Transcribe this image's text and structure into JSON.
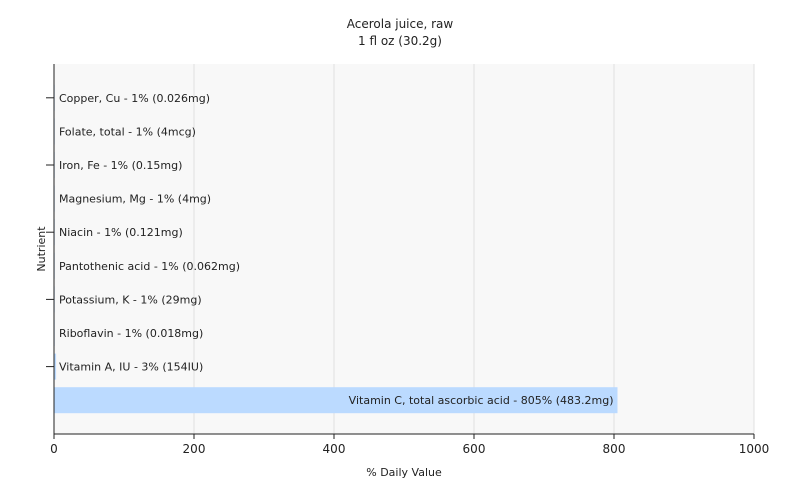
{
  "chart_data": {
    "type": "bar",
    "orientation": "horizontal",
    "title": "Acerola juice, raw",
    "subtitle": "1 fl oz (30.2g)",
    "xlabel": "% Daily Value",
    "ylabel": "Nutrient",
    "xlim": [
      0,
      1000
    ],
    "xticks": [
      0,
      200,
      400,
      600,
      800,
      1000
    ],
    "grid": true,
    "bar_color": "#bbdaff",
    "plot_background": "#f8f8f8",
    "categories": [
      "Copper, Cu",
      "Folate, total",
      "Iron, Fe",
      "Magnesium, Mg",
      "Niacin",
      "Pantothenic acid",
      "Potassium, K",
      "Riboflavin",
      "Vitamin A, IU",
      "Vitamin C, total ascorbic acid"
    ],
    "values": [
      1,
      1,
      1,
      1,
      1,
      1,
      1,
      1,
      3,
      805
    ],
    "labels": [
      "Copper, Cu - 1% (0.026mg)",
      "Folate, total - 1% (4mcg)",
      "Iron, Fe - 1% (0.15mg)",
      "Magnesium, Mg - 1% (4mg)",
      "Niacin - 1% (0.121mg)",
      "Pantothenic acid - 1% (0.062mg)",
      "Potassium, K - 1% (29mg)",
      "Riboflavin - 1% (0.018mg)",
      "Vitamin A, IU - 3% (154IU)",
      "Vitamin C, total ascorbic acid - 805% (483.2mg)"
    ]
  }
}
